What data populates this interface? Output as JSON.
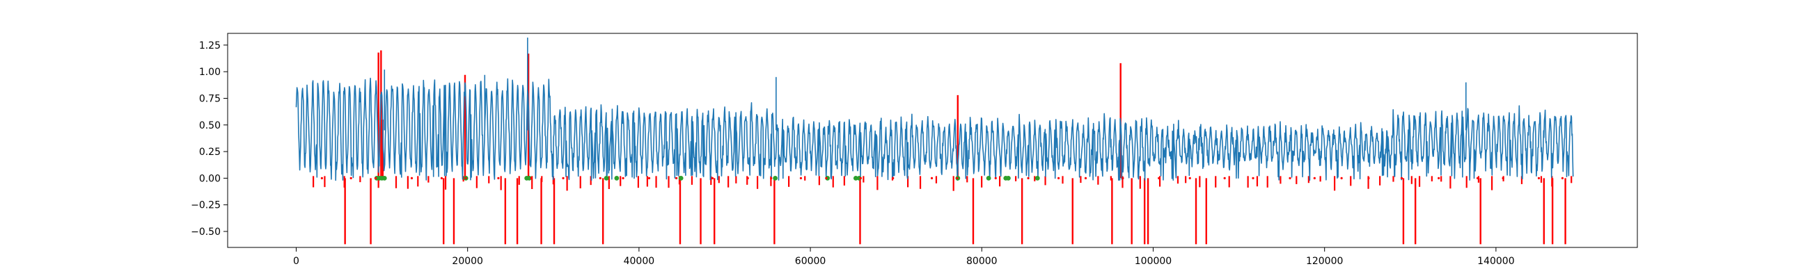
{
  "chart_data": {
    "type": "line",
    "title": "",
    "xlabel": "",
    "ylabel": "",
    "xlim": [
      -8000,
      156500
    ],
    "ylim": [
      -0.65,
      1.36
    ],
    "grid": false,
    "x_ticks": [
      0,
      20000,
      40000,
      60000,
      80000,
      100000,
      120000,
      140000
    ],
    "x_tick_labels": [
      "0",
      "20000",
      "40000",
      "60000",
      "80000",
      "100000",
      "120000",
      "140000"
    ],
    "y_ticks": [
      -0.5,
      -0.25,
      0.0,
      0.25,
      0.5,
      0.75,
      1.0,
      1.25
    ],
    "y_tick_labels": [
      "−0.50",
      "−0.25",
      "0.00",
      "0.25",
      "0.50",
      "0.75",
      "1.00",
      "1.25"
    ],
    "series": [
      {
        "kind": "signal",
        "color": "#1f77b4",
        "x_range": [
          0,
          149000
        ],
        "y_range": [
          -0.03,
          1.32
        ],
        "approx_mean": 0.38
      },
      {
        "kind": "spikes",
        "color": "#ff0000",
        "x": [
          5700,
          8700,
          9600,
          9900,
          10100,
          17200,
          18400,
          19700,
          24400,
          25800,
          27100,
          28600,
          30100,
          35800,
          44800,
          47200,
          48800,
          55800,
          65800,
          77200,
          79000,
          84700,
          90600,
          95200,
          96200,
          97500,
          99000,
          99400,
          105000,
          106200,
          129200,
          130600,
          138200,
          145600,
          146600,
          148100
        ],
        "y": [
          -0.62,
          -0.62,
          1.18,
          1.2,
          0.55,
          -0.62,
          -0.62,
          0.97,
          -0.62,
          -0.62,
          1.17,
          -0.62,
          -0.62,
          -0.62,
          -0.62,
          -0.62,
          -0.62,
          -0.62,
          -0.62,
          0.78,
          -0.62,
          -0.62,
          -0.62,
          -0.62,
          1.08,
          -0.62,
          -0.62,
          -0.62,
          -0.62,
          -0.62,
          -0.62,
          -0.62,
          -0.62,
          -0.62,
          -0.62,
          -0.62
        ]
      },
      {
        "kind": "markers",
        "color": "#2ca02c",
        "x": [
          9400,
          9700,
          10000,
          10300,
          19800,
          26900,
          27200,
          36200,
          37400,
          44900,
          55900,
          62000,
          65300,
          65700,
          77200,
          80800,
          82800,
          83100,
          86500
        ],
        "y": [
          0,
          0,
          0,
          0,
          0,
          0,
          0,
          0,
          0,
          0,
          0,
          0,
          0,
          0,
          0,
          0,
          0,
          0,
          0
        ]
      }
    ]
  }
}
